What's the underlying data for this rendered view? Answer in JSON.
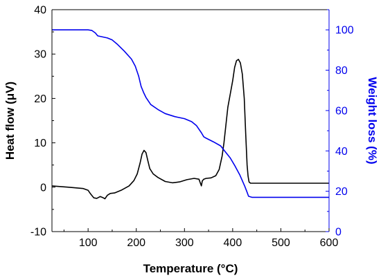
{
  "chart_data": {
    "type": "line",
    "xlabel": "Temperature (°C)",
    "ylabel_left": "Heat flow (μV)",
    "ylabel_right": "Weight loss (%)",
    "xlim": [
      25,
      600
    ],
    "ylim_left": [
      -10,
      40
    ],
    "ylim_right": [
      0,
      110
    ],
    "x_ticks": [
      100,
      200,
      300,
      400,
      500,
      600
    ],
    "y_ticks_left": [
      -10,
      0,
      10,
      20,
      30,
      40
    ],
    "y_ticks_right": [
      0,
      20,
      40,
      60,
      80,
      100
    ],
    "grid": false,
    "colors": {
      "left_axis": "#000000",
      "right_axis": "#0000ee",
      "heat_flow": "#000000",
      "weight_loss": "#0000ee"
    },
    "series": [
      {
        "axis": "left",
        "x": [
          25,
          60,
          90,
          100,
          105,
          112,
          118,
          125,
          130,
          135,
          140,
          146,
          155,
          170,
          185,
          195,
          202,
          208,
          212,
          216,
          220,
          224,
          228,
          235,
          245,
          260,
          275,
          290,
          305,
          320,
          330,
          335,
          337,
          340,
          345,
          355,
          365,
          372,
          378,
          382,
          386,
          390,
          395,
          400,
          404,
          408,
          412,
          416,
          420,
          424,
          427,
          430,
          432,
          434,
          437,
          440,
          460,
          500,
          550,
          600
        ],
        "y": [
          0.3,
          0.0,
          -0.3,
          -0.7,
          -1.5,
          -2.4,
          -2.5,
          -2.1,
          -2.3,
          -2.6,
          -1.8,
          -1.4,
          -1.3,
          -0.6,
          0.3,
          1.5,
          3.0,
          5.5,
          7.5,
          8.3,
          7.8,
          6.0,
          4.2,
          3.0,
          2.2,
          1.3,
          1.0,
          1.2,
          1.7,
          2.0,
          1.8,
          0.3,
          1.4,
          1.8,
          2.0,
          2.1,
          2.6,
          4.0,
          7.0,
          10.0,
          14.0,
          18.0,
          21.0,
          24.0,
          27.0,
          28.5,
          28.8,
          28.0,
          25.5,
          20.0,
          12.0,
          5.0,
          2.5,
          1.2,
          0.9,
          0.9,
          0.9,
          0.9,
          0.9,
          0.9
        ]
      },
      {
        "axis": "right",
        "x": [
          25,
          100,
          108,
          115,
          120,
          140,
          150,
          160,
          175,
          190,
          198,
          205,
          210,
          215,
          220,
          230,
          245,
          260,
          280,
          300,
          315,
          325,
          335,
          340,
          345,
          360,
          375,
          385,
          395,
          405,
          415,
          425,
          430,
          433,
          440,
          500,
          600
        ],
        "y": [
          100,
          100,
          99.7,
          98.5,
          97.0,
          96.0,
          95.0,
          93.0,
          89.5,
          85.5,
          82.0,
          77.0,
          72.0,
          69.0,
          66.5,
          63.0,
          60.5,
          58.5,
          57.0,
          56.0,
          54.5,
          52.5,
          49.0,
          47.0,
          46.3,
          44.5,
          42.5,
          39.5,
          36.5,
          32.5,
          28.0,
          22.5,
          19.5,
          17.5,
          17.0,
          17.0,
          17.0
        ]
      }
    ]
  }
}
